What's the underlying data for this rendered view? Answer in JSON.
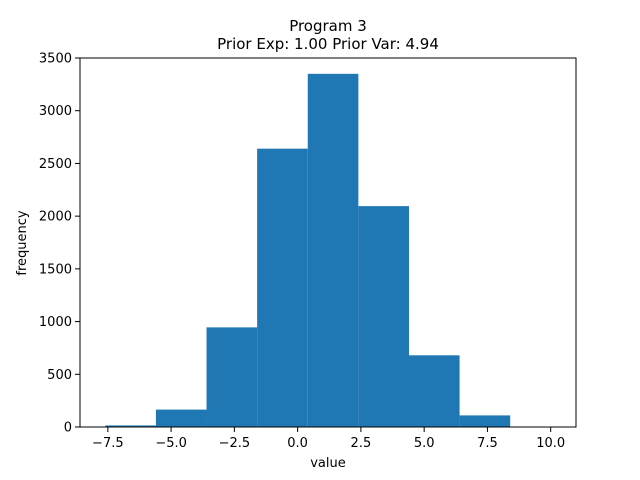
{
  "chart_data": {
    "type": "bar",
    "title": "Program 3",
    "subtitle": "Prior Exp: 1.00    Prior Var: 4.94",
    "xlabel": "value",
    "ylabel": "frequency",
    "xlim": [
      -8.6,
      11.0
    ],
    "ylim": [
      0,
      3500
    ],
    "xticks": [
      -7.5,
      -5.0,
      -2.5,
      0.0,
      2.5,
      5.0,
      7.5,
      10.0
    ],
    "xtick_labels": [
      "−7.5",
      "−5.0",
      "−2.5",
      "0.0",
      "2.5",
      "5.0",
      "7.5",
      "10.0"
    ],
    "yticks": [
      0,
      500,
      1000,
      1500,
      2000,
      2500,
      3000,
      3500
    ],
    "ytick_labels": [
      "0",
      "500",
      "1000",
      "1500",
      "2000",
      "2500",
      "3000",
      "3500"
    ],
    "bins": [
      {
        "x0": -7.6,
        "x1": -5.6,
        "value": 15
      },
      {
        "x0": -5.6,
        "x1": -3.6,
        "value": 165
      },
      {
        "x0": -3.6,
        "x1": -1.6,
        "value": 945
      },
      {
        "x0": -1.6,
        "x1": 0.4,
        "value": 2640
      },
      {
        "x0": 0.4,
        "x1": 2.4,
        "value": 3350
      },
      {
        "x0": 2.4,
        "x1": 4.4,
        "value": 2095
      },
      {
        "x0": 4.4,
        "x1": 6.4,
        "value": 680
      },
      {
        "x0": 6.4,
        "x1": 8.4,
        "value": 110
      },
      {
        "x0": 8.4,
        "x1": 10.4,
        "value": 3
      }
    ],
    "colors": {
      "bar": "#1f77b4"
    },
    "grid": false,
    "legend": "none"
  }
}
